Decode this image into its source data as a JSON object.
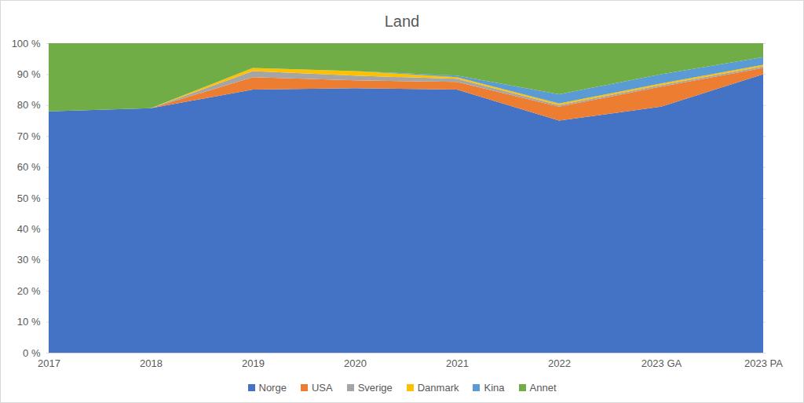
{
  "chart_data": {
    "type": "area",
    "title": "Land",
    "stacked": true,
    "grid": true,
    "legend": "bottom",
    "categories": [
      "2017",
      "2018",
      "2019",
      "2020",
      "2021",
      "2022",
      "2023 GA",
      "2023 PA"
    ],
    "ylim": [
      0,
      100
    ],
    "yticks": [
      {
        "value": 0,
        "label": "0 %"
      },
      {
        "value": 10,
        "label": "10 %"
      },
      {
        "value": 20,
        "label": "20 %"
      },
      {
        "value": 30,
        "label": "30 %"
      },
      {
        "value": 40,
        "label": "40 %"
      },
      {
        "value": 50,
        "label": "50 %"
      },
      {
        "value": 60,
        "label": "60 %"
      },
      {
        "value": 70,
        "label": "70 %"
      },
      {
        "value": 80,
        "label": "80 %"
      },
      {
        "value": 90,
        "label": "90 %"
      },
      {
        "value": 100,
        "label": "100 %"
      }
    ],
    "series": [
      {
        "name": "Norge",
        "color": "#4472c4",
        "values": [
          78,
          79,
          85,
          85.5,
          85,
          75,
          79.5,
          90
        ]
      },
      {
        "name": "USA",
        "color": "#ed7d31",
        "values": [
          0,
          0,
          4,
          2.5,
          2.5,
          4.5,
          6.5,
          2
        ]
      },
      {
        "name": "Sverige",
        "color": "#a5a5a5",
        "values": [
          0,
          0,
          2,
          1.5,
          1,
          0.5,
          0.5,
          0.5
        ]
      },
      {
        "name": "Danmark",
        "color": "#ffc000",
        "values": [
          0,
          0,
          1,
          1.5,
          0.5,
          0.5,
          0.5,
          0.5
        ]
      },
      {
        "name": "Kina",
        "color": "#5b9bd5",
        "values": [
          0,
          0,
          0,
          0,
          0.5,
          3,
          3,
          2.5
        ]
      },
      {
        "name": "Annet",
        "color": "#70ad47",
        "values": [
          22,
          21,
          8,
          9,
          10.5,
          16.5,
          10,
          4.5
        ]
      }
    ]
  }
}
